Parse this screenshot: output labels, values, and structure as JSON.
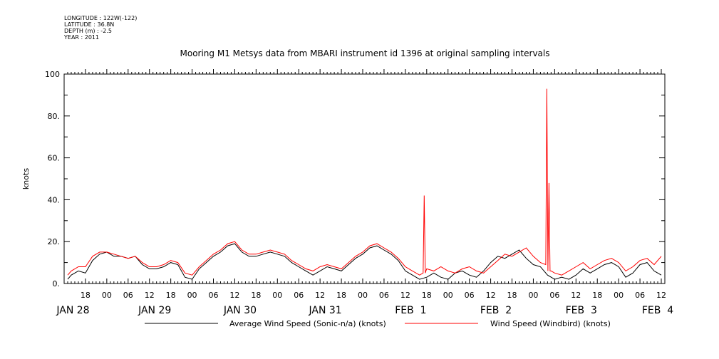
{
  "metadata": {
    "longitude": "LONGITUDE : 122W(-122)",
    "latitude": "LATITUDE : 36.8N",
    "depth": "DEPTH (m) : -2.5",
    "year": "YEAR : 2011"
  },
  "chart_data": {
    "type": "line",
    "title": "Mooring M1 Metsys data from MBARI instrument id 1396 at original sampling intervals",
    "ylabel": "knots",
    "ylim": [
      0,
      100
    ],
    "y_ticks": [
      "0.",
      "20.",
      "40.",
      "60.",
      "80.",
      "100"
    ],
    "x_unit": "hours since JAN 28 00:00 (2011)",
    "xlim": [
      12,
      181
    ],
    "hour_tick_labels": [
      "18",
      "00",
      "06",
      "12",
      "18",
      "00",
      "06",
      "12",
      "18",
      "00",
      "06",
      "12",
      "18",
      "00",
      "06",
      "12",
      "18",
      "00",
      "06",
      "12",
      "18",
      "00",
      "06",
      "12",
      "18",
      "00",
      "06",
      "12"
    ],
    "date_labels": [
      "JAN 28",
      "JAN 29",
      "JAN 30",
      "JAN 31",
      "FEB  1",
      "FEB  2",
      "FEB  3",
      "FEB  4"
    ],
    "grid": false,
    "legend_placement": "bottom",
    "series": [
      {
        "name": "Average Wind Speed (Sonic-n/a) (knots)",
        "color": "#000000",
        "x": [
          13,
          14,
          16,
          18,
          20,
          22,
          24,
          26,
          28,
          30,
          32,
          34,
          36,
          38,
          40,
          42,
          44,
          46,
          48,
          50,
          52,
          54,
          56,
          58,
          60,
          62,
          64,
          66,
          68,
          70,
          72,
          74,
          76,
          78,
          80,
          82,
          84,
          86,
          88,
          90,
          92,
          94,
          96,
          98,
          100,
          102,
          104,
          106,
          108,
          110,
          112,
          114,
          116,
          118,
          120,
          122,
          124,
          126,
          128,
          130,
          132,
          134,
          136,
          138,
          140,
          142,
          144,
          146,
          148,
          150,
          152,
          154,
          156,
          158,
          160,
          162,
          164,
          166,
          168,
          170,
          172,
          174,
          176,
          178,
          180
        ],
        "y": [
          2,
          4,
          6,
          5,
          11,
          14,
          15,
          13,
          13,
          12,
          13,
          9,
          7,
          7,
          8,
          10,
          9,
          3,
          2,
          7,
          10,
          13,
          15,
          18,
          19,
          15,
          13,
          13,
          14,
          15,
          14,
          13,
          10,
          8,
          6,
          4,
          6,
          8,
          7,
          6,
          9,
          12,
          14,
          17,
          18,
          16,
          14,
          11,
          6,
          4,
          2,
          3,
          5,
          3,
          2,
          5,
          6,
          4,
          3,
          6,
          10,
          13,
          12,
          14,
          16,
          12,
          9,
          8,
          4,
          2,
          3,
          2,
          4,
          7,
          5,
          7,
          9,
          10,
          8,
          3,
          5,
          9,
          10,
          6,
          4
        ]
      },
      {
        "name": "Wind Speed (Windbird) (knots)",
        "color": "#ff0000",
        "x": [
          13,
          14,
          16,
          18,
          20,
          22,
          24,
          26,
          28,
          30,
          32,
          34,
          36,
          38,
          40,
          42,
          44,
          46,
          48,
          50,
          52,
          54,
          56,
          58,
          60,
          62,
          64,
          66,
          68,
          70,
          72,
          74,
          76,
          78,
          80,
          82,
          84,
          86,
          88,
          90,
          92,
          94,
          96,
          98,
          100,
          102,
          104,
          106,
          108,
          110,
          112,
          113,
          113.3,
          113.6,
          114,
          116,
          118,
          120,
          122,
          124,
          126,
          128,
          130,
          132,
          134,
          136,
          138,
          140,
          142,
          144,
          146,
          147.5,
          147.8,
          148.1,
          148.4,
          148.7,
          149,
          150,
          152,
          154,
          156,
          158,
          160,
          162,
          164,
          166,
          168,
          170,
          172,
          174,
          176,
          178,
          180
        ],
        "y": [
          4,
          6,
          8,
          8,
          13,
          15,
          15,
          14,
          13,
          12,
          13,
          10,
          8,
          8,
          9,
          11,
          10,
          5,
          4,
          8,
          11,
          14,
          16,
          19,
          20,
          16,
          14,
          14,
          15,
          16,
          15,
          14,
          11,
          9,
          7,
          6,
          8,
          9,
          8,
          7,
          10,
          13,
          15,
          18,
          19,
          17,
          15,
          12,
          8,
          6,
          4,
          5,
          42,
          5,
          7,
          6,
          8,
          6,
          5,
          7,
          8,
          6,
          5,
          8,
          11,
          14,
          13,
          15,
          17,
          13,
          10,
          9,
          93,
          6,
          48,
          6,
          6,
          5,
          4,
          6,
          8,
          10,
          7,
          9,
          11,
          12,
          10,
          6,
          8,
          11,
          12,
          9,
          13
        ]
      }
    ]
  }
}
